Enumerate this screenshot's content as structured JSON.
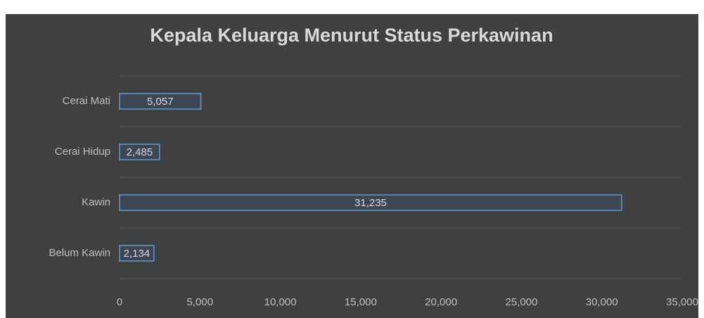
{
  "chart_data": {
    "type": "hbar",
    "title": "Kepala Keluarga Menurut Status Perkawinan",
    "categories": [
      "Cerai Mati",
      "Cerai Hidup",
      "Kawin",
      "Belum Kawin"
    ],
    "values": [
      5057,
      2485,
      31235,
      2134
    ],
    "value_labels": [
      "5,057",
      "2,485",
      "31,235",
      "2,134"
    ],
    "color": "#5b9bd5",
    "xlim": [
      0,
      35000
    ],
    "xticks": [
      0,
      {
        "value": 5000,
        "label": "5,000"
      },
      {
        "value": 10000,
        "label": "10,000"
      },
      {
        "value": 15000,
        "label": "15,000"
      },
      {
        "value": 20000,
        "label": "20,000"
      },
      {
        "value": 25000,
        "label": "25,000"
      },
      {
        "value": 30000,
        "label": "30,000"
      },
      {
        "value": 35000,
        "label": "35,000"
      }
    ],
    "grid": true
  }
}
